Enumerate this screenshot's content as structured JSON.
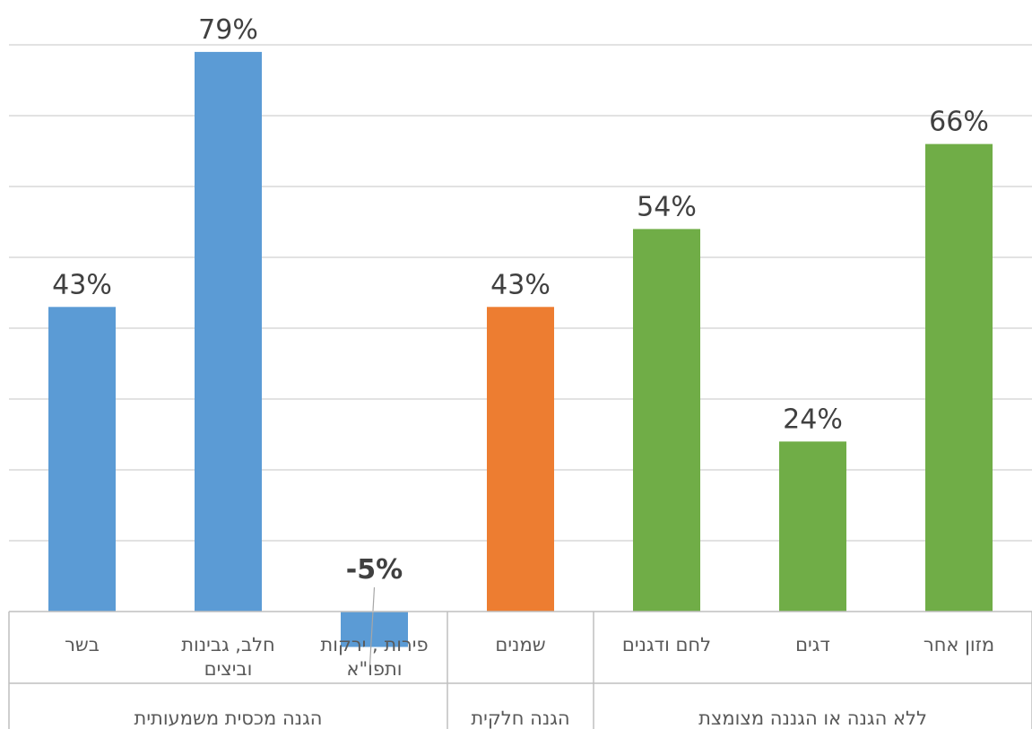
{
  "chart_data": {
    "type": "bar",
    "ylim": [
      -10,
      80
    ],
    "grid": true,
    "categories": [
      "בשר",
      "חלב, גבינות וביצים",
      "פירות , ירקות ותפו\"א",
      "שמנים",
      "לחם ודגנים",
      "דגים",
      "מזון אחר"
    ],
    "category_lines": [
      [
        "בשר"
      ],
      [
        "חלב, גבינות",
        "וביצים"
      ],
      [
        "פירות , ירקות",
        "ותפו\"א"
      ],
      [
        "שמנים"
      ],
      [
        "לחם ודגנים"
      ],
      [
        "דגים"
      ],
      [
        "מזון אחר"
      ]
    ],
    "values": [
      43,
      79,
      -5,
      43,
      54,
      24,
      66
    ],
    "data_labels": [
      "43%",
      "79%",
      "-5%",
      "43%",
      "54%",
      "24%",
      "66%"
    ],
    "groups": [
      {
        "label": "הגנה מכסית משמעותית",
        "count": 3,
        "color": "#5b9bd5"
      },
      {
        "label": "הגנה חלקית",
        "count": 1,
        "color": "#ed7d31"
      },
      {
        "label": "ללא הגנה או הגננה מצומצת",
        "count": 3,
        "color": "#70ad47"
      }
    ]
  }
}
